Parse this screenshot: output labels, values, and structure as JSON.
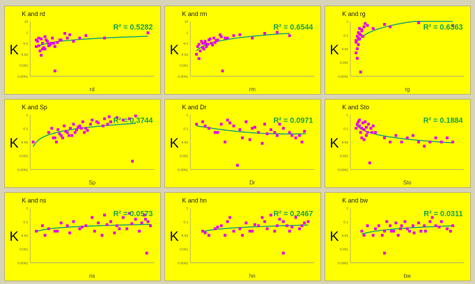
{
  "colors": {
    "background": "#ffff00",
    "point": "#e600e6",
    "trend": "#0aa07a",
    "r2": "#16a34a"
  },
  "panels": [
    {
      "title": "K and rd",
      "xlabel": "rd",
      "y_axis_label": "K",
      "r2_label": "R² = 0.5282",
      "note": "",
      "yticks": [
        "10",
        "1",
        "0.1",
        "0.01",
        "0.001",
        "0.0001"
      ]
    },
    {
      "title": "K and rm",
      "xlabel": "rm",
      "y_axis_label": "K",
      "r2_label": "R² = 0.6544",
      "note": "",
      "yticks": [
        "10",
        "1",
        "0.1",
        "0.01",
        "0.001",
        "0.0001"
      ]
    },
    {
      "title": "K and rg",
      "xlabel": "rg",
      "y_axis_label": "K",
      "r2_label": "R² = 0.6363",
      "note": "",
      "yticks": [
        "1",
        "0.1",
        "0.01",
        "0.001",
        "0.0001"
      ]
    },
    {
      "title": "K and Sp",
      "xlabel": "Sp",
      "y_axis_label": "K",
      "r2_label": "R² = 0.3744",
      "note": "",
      "yticks": [
        "1",
        "0.1",
        "0.01",
        "0.001",
        "0.0001"
      ]
    },
    {
      "title": "K and Dr",
      "xlabel": "Dr",
      "y_axis_label": "K",
      "r2_label": "R² = 0.0971",
      "note": "",
      "yticks": [
        "1",
        "0.1",
        "0.01",
        "0.001",
        "0.0001"
      ]
    },
    {
      "title": "K and Sto",
      "xlabel": "Sto",
      "y_axis_label": "K",
      "r2_label": "R² = 0.1884",
      "note": "",
      "yticks": [
        "1",
        "0.1",
        "0.01",
        "0.001",
        "0.0001"
      ]
    },
    {
      "title": "K and ns",
      "xlabel": "ns",
      "y_axis_label": "K",
      "r2_label": "R² = 0.0573",
      "note": "",
      "yticks": [
        "1",
        "0.1",
        "0.01",
        "0.001",
        "0.0001"
      ]
    },
    {
      "title": "K and hn",
      "xlabel": "hn",
      "y_axis_label": "K",
      "r2_label": "R² = 0.2467",
      "note": "",
      "yticks": [
        "1",
        "0.1",
        "0.01",
        "0.001",
        "0.0001"
      ]
    },
    {
      "title": "K and bw",
      "xlabel": "bw",
      "y_axis_label": "K",
      "r2_label": "R² = 0.0311",
      "note": "",
      "yticks": [
        "1",
        "0.1",
        "0.01",
        "0.001",
        "0.0001"
      ]
    }
  ],
  "chart_data": [
    {
      "type": "scatter",
      "title": "K and rd",
      "xlabel": "rd",
      "ylabel": "K",
      "ylog": true,
      "xlim": [
        0,
        1
      ],
      "ylim": [
        0.0001,
        10
      ],
      "trend": "log",
      "r2": 0.5282,
      "x": [
        0.05,
        0.06,
        0.07,
        0.08,
        0.1,
        0.12,
        0.13,
        0.15,
        0.17,
        0.2,
        0.22,
        0.25,
        0.3,
        0.32,
        0.35,
        0.4,
        0.45,
        0.05,
        0.07,
        0.09,
        0.11,
        0.14,
        0.16,
        0.19,
        0.09,
        0.12,
        0.18,
        0.24,
        0.28,
        0.6,
        0.95,
        0.1,
        0.2,
        0.15
      ],
      "y": [
        0.05,
        0.15,
        0.3,
        0.02,
        0.1,
        0.03,
        0.2,
        0.08,
        0.1,
        0.05,
        0.12,
        0.2,
        0.3,
        0.6,
        0.15,
        0.3,
        0.5,
        0.2,
        0.06,
        0.25,
        0.04,
        0.15,
        0.07,
        0.1,
        0.008,
        0.4,
        0.3,
        0.2,
        0.8,
        0.3,
        0.9,
        0.03,
        0.0003,
        0.06
      ]
    },
    {
      "type": "scatter",
      "title": "K and rm",
      "xlabel": "rm",
      "ylabel": "K",
      "ylog": true,
      "xlim": [
        0,
        1
      ],
      "ylim": [
        0.0001,
        10
      ],
      "trend": "log",
      "r2": 0.6544,
      "x": [
        0.05,
        0.06,
        0.08,
        0.1,
        0.11,
        0.12,
        0.14,
        0.15,
        0.17,
        0.19,
        0.2,
        0.22,
        0.25,
        0.3,
        0.35,
        0.4,
        0.5,
        0.6,
        0.07,
        0.09,
        0.13,
        0.16,
        0.18,
        0.24,
        0.28,
        0.07,
        0.1,
        0.12,
        0.21,
        0.7,
        0.8,
        0.26
      ],
      "y": [
        0.01,
        0.05,
        0.02,
        0.1,
        0.03,
        0.15,
        0.08,
        0.2,
        0.1,
        0.3,
        0.12,
        0.2,
        0.4,
        0.3,
        0.5,
        0.6,
        0.3,
        0.8,
        0.08,
        0.15,
        0.05,
        0.25,
        0.07,
        0.6,
        0.3,
        0.004,
        0.04,
        0.1,
        0.18,
        1.0,
        0.5,
        0.0003
      ]
    },
    {
      "type": "scatter",
      "title": "K and rg",
      "xlabel": "rg",
      "ylabel": "K",
      "ylog": true,
      "xlim": [
        0,
        1
      ],
      "ylim": [
        0.0001,
        1
      ],
      "trend": "log",
      "r2": 0.6363,
      "x": [
        0.05,
        0.06,
        0.07,
        0.08,
        0.09,
        0.1,
        0.05,
        0.06,
        0.07,
        0.08,
        0.12,
        0.15,
        0.2,
        0.3,
        0.35,
        0.6,
        0.9,
        0.06,
        0.07,
        0.08,
        0.1,
        0.11,
        0.05,
        0.09,
        0.13
      ],
      "y": [
        0.005,
        0.01,
        0.02,
        0.05,
        0.1,
        0.2,
        0.03,
        0.08,
        0.15,
        0.3,
        0.4,
        0.5,
        0.3,
        0.6,
        0.4,
        0.8,
        0.5,
        0.002,
        0.06,
        0.12,
        0.25,
        0.08,
        0.04,
        0.0002,
        0.7
      ]
    },
    {
      "type": "scatter",
      "title": "K and Sp",
      "xlabel": "Sp",
      "ylabel": "K",
      "ylog": true,
      "xlim": [
        0,
        4
      ],
      "ylim": [
        0.0001,
        1
      ],
      "trend": "log",
      "r2": 0.3744,
      "x": [
        0.1,
        0.6,
        0.7,
        0.8,
        0.9,
        1.0,
        1.1,
        1.2,
        1.3,
        1.4,
        1.5,
        1.6,
        1.7,
        1.8,
        2.0,
        2.2,
        2.4,
        2.6,
        2.8,
        3.0,
        3.2,
        3.4,
        0.75,
        0.95,
        1.15,
        1.35,
        1.55,
        1.75,
        1.95,
        2.15,
        2.35,
        2.55,
        0.85,
        1.05,
        1.25,
        1.45,
        1.65,
        1.85,
        2.5,
        3.3
      ],
      "y": [
        0.01,
        0.05,
        0.1,
        0.02,
        0.08,
        0.03,
        0.15,
        0.05,
        0.1,
        0.2,
        0.08,
        0.15,
        0.3,
        0.1,
        0.4,
        0.25,
        0.5,
        0.3,
        0.6,
        0.4,
        0.5,
        0.8,
        0.02,
        0.04,
        0.06,
        0.03,
        0.12,
        0.05,
        0.2,
        0.3,
        0.15,
        0.7,
        0.01,
        0.02,
        0.03,
        0.05,
        0.1,
        0.07,
        0.2,
        0.0004
      ]
    },
    {
      "type": "scatter",
      "title": "K and Dr",
      "xlabel": "Dr",
      "ylabel": "K",
      "ylog": true,
      "xlim": [
        0,
        1
      ],
      "ylim": [
        0.0001,
        1
      ],
      "trend": "poly2",
      "r2": 0.0971,
      "x": [
        0.05,
        0.1,
        0.15,
        0.2,
        0.25,
        0.3,
        0.35,
        0.4,
        0.45,
        0.5,
        0.55,
        0.6,
        0.65,
        0.7,
        0.75,
        0.8,
        0.85,
        0.9,
        0.12,
        0.22,
        0.32,
        0.42,
        0.52,
        0.62,
        0.72,
        0.82,
        0.92,
        0.28,
        0.48,
        0.68,
        0.58,
        0.38,
        0.88
      ],
      "y": [
        0.2,
        0.3,
        0.1,
        0.05,
        0.2,
        0.4,
        0.15,
        0.08,
        0.3,
        0.1,
        0.05,
        0.2,
        0.08,
        0.03,
        0.1,
        0.05,
        0.02,
        0.01,
        0.15,
        0.05,
        0.25,
        0.02,
        0.12,
        0.04,
        0.2,
        0.03,
        0.06,
        0.01,
        0.015,
        0.05,
        0.008,
        0.0002,
        0.03
      ]
    },
    {
      "type": "scatter",
      "title": "K and Sto",
      "xlabel": "Sto",
      "ylabel": "K",
      "ylog": true,
      "xlim": [
        0,
        1
      ],
      "ylim": [
        0.0001,
        1
      ],
      "trend": "log-decay",
      "r2": 0.1884,
      "x": [
        0.05,
        0.06,
        0.07,
        0.08,
        0.09,
        0.1,
        0.11,
        0.12,
        0.13,
        0.14,
        0.15,
        0.16,
        0.18,
        0.2,
        0.22,
        0.3,
        0.35,
        0.4,
        0.45,
        0.5,
        0.55,
        0.6,
        0.65,
        0.7,
        0.75,
        0.8,
        0.85,
        0.9,
        0.08,
        0.1,
        0.12,
        0.14,
        0.17,
        0.19
      ],
      "y": [
        0.1,
        0.2,
        0.3,
        0.15,
        0.05,
        0.1,
        0.25,
        0.08,
        0.3,
        0.12,
        0.05,
        0.2,
        0.1,
        0.15,
        0.05,
        0.02,
        0.01,
        0.03,
        0.01,
        0.02,
        0.03,
        0.01,
        0.005,
        0.01,
        0.02,
        0.01,
        0.02,
        0.01,
        0.4,
        0.02,
        0.015,
        0.03,
        0.0003,
        0.05
      ]
    },
    {
      "type": "scatter",
      "title": "K and ns",
      "xlabel": "ns",
      "ylabel": "K",
      "ylog": true,
      "xlim": [
        0,
        1
      ],
      "ylim": [
        0.0001,
        1
      ],
      "trend": "log",
      "r2": 0.0573,
      "x": [
        0.05,
        0.1,
        0.15,
        0.2,
        0.25,
        0.3,
        0.35,
        0.4,
        0.45,
        0.5,
        0.55,
        0.6,
        0.65,
        0.7,
        0.75,
        0.8,
        0.85,
        0.9,
        0.92,
        0.95,
        0.97,
        0.12,
        0.22,
        0.32,
        0.42,
        0.52,
        0.62,
        0.72,
        0.82,
        0.88,
        0.93,
        0.58,
        0.68,
        0.78,
        0.94
      ],
      "y": [
        0.02,
        0.05,
        0.03,
        0.02,
        0.08,
        0.05,
        0.1,
        0.03,
        0.05,
        0.2,
        0.08,
        0.3,
        0.1,
        0.05,
        0.2,
        0.4,
        0.15,
        0.08,
        0.3,
        0.1,
        0.05,
        0.01,
        0.02,
        0.015,
        0.04,
        0.02,
        0.06,
        0.03,
        0.07,
        0.02,
        0.15,
        0.01,
        0.015,
        0.03,
        0.0005
      ]
    },
    {
      "type": "scatter",
      "title": "K and hn",
      "xlabel": "hn",
      "ylabel": "K",
      "ylog": true,
      "xlim": [
        0,
        1
      ],
      "ylim": [
        0.0001,
        1
      ],
      "trend": "log",
      "r2": 0.2467,
      "x": [
        0.1,
        0.15,
        0.2,
        0.25,
        0.3,
        0.35,
        0.4,
        0.45,
        0.5,
        0.55,
        0.6,
        0.65,
        0.7,
        0.75,
        0.8,
        0.85,
        0.9,
        0.95,
        0.12,
        0.22,
        0.32,
        0.42,
        0.52,
        0.62,
        0.72,
        0.82,
        0.92,
        0.28,
        0.48,
        0.68,
        0.88,
        0.58,
        0.78,
        0.75
      ],
      "y": [
        0.02,
        0.01,
        0.03,
        0.05,
        0.1,
        0.02,
        0.03,
        0.08,
        0.02,
        0.05,
        0.1,
        0.3,
        0.05,
        0.1,
        0.02,
        0.2,
        0.05,
        0.1,
        0.015,
        0.04,
        0.2,
        0.01,
        0.06,
        0.03,
        0.15,
        0.04,
        0.08,
        0.01,
        0.02,
        0.02,
        0.03,
        0.2,
        0.05,
        0.0005
      ]
    },
    {
      "type": "scatter",
      "title": "K and bw",
      "xlabel": "bw",
      "ylabel": "K",
      "ylog": true,
      "xlim": [
        0,
        1
      ],
      "ylim": [
        0.0001,
        1
      ],
      "trend": "log",
      "r2": 0.0311,
      "x": [
        0.1,
        0.15,
        0.2,
        0.22,
        0.25,
        0.3,
        0.32,
        0.35,
        0.38,
        0.4,
        0.42,
        0.45,
        0.48,
        0.5,
        0.52,
        0.55,
        0.6,
        0.62,
        0.65,
        0.7,
        0.72,
        0.75,
        0.8,
        0.85,
        0.9,
        0.12,
        0.28,
        0.36,
        0.44,
        0.56,
        0.66,
        0.78,
        0.88,
        0.3
      ],
      "y": [
        0.02,
        0.05,
        0.01,
        0.03,
        0.05,
        0.02,
        0.1,
        0.05,
        0.02,
        0.08,
        0.01,
        0.05,
        0.1,
        0.03,
        0.02,
        0.05,
        0.08,
        0.02,
        0.05,
        0.1,
        0.2,
        0.05,
        0.1,
        0.03,
        0.05,
        0.01,
        0.01,
        0.02,
        0.03,
        0.015,
        0.02,
        0.04,
        0.02,
        0.0005
      ]
    }
  ]
}
